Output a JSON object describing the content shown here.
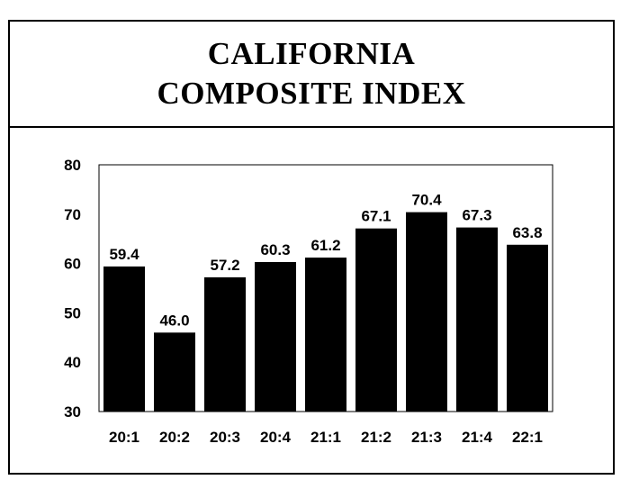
{
  "chart_data": {
    "type": "bar",
    "title_lines": [
      "CALIFORNIA",
      "COMPOSITE INDEX"
    ],
    "categories": [
      "20:1",
      "20:2",
      "20:3",
      "20:4",
      "21:1",
      "21:2",
      "21:3",
      "21:4",
      "22:1"
    ],
    "values": [
      59.4,
      46.0,
      57.2,
      60.3,
      61.2,
      67.1,
      70.4,
      67.3,
      63.8
    ],
    "value_labels": [
      "59.4",
      "46.0",
      "57.2",
      "60.3",
      "61.2",
      "67.1",
      "70.4",
      "67.3",
      "63.8"
    ],
    "ylim": [
      30,
      80
    ],
    "yticks": [
      "30",
      "40",
      "50",
      "60",
      "70",
      "80"
    ],
    "xlabel": "",
    "ylabel": "",
    "grid": false,
    "bar_color": "#000000"
  }
}
